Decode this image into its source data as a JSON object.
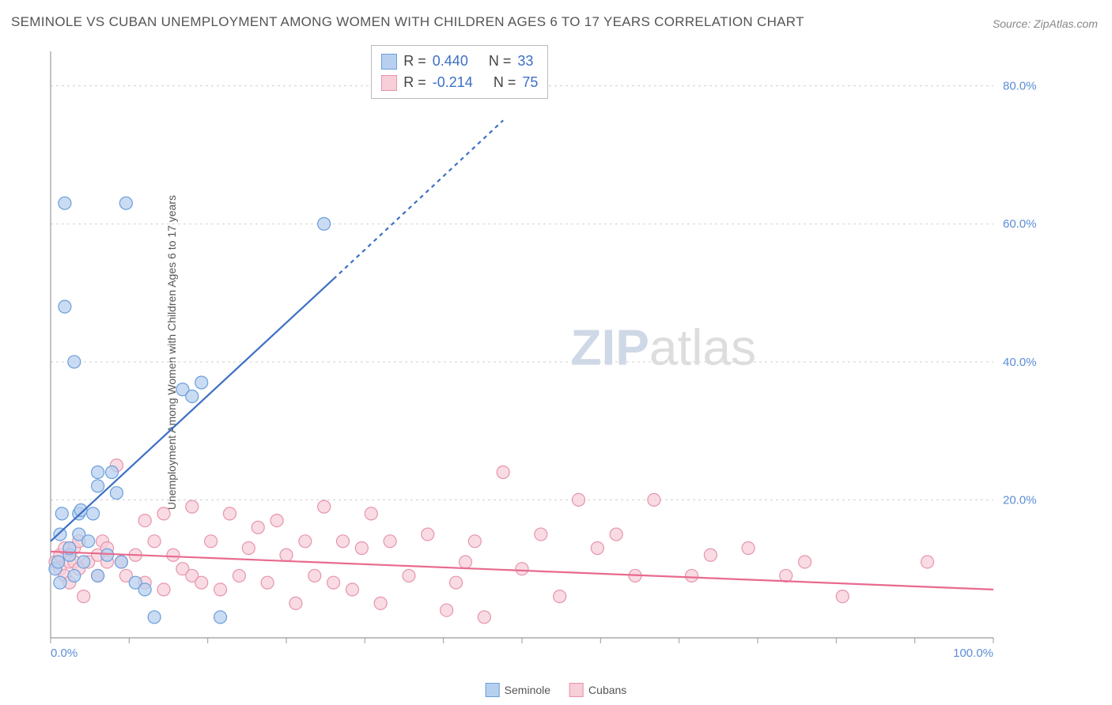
{
  "title": "SEMINOLE VS CUBAN UNEMPLOYMENT AMONG WOMEN WITH CHILDREN AGES 6 TO 17 YEARS CORRELATION CHART",
  "source_label": "Source: ",
  "source_name": "ZipAtlas.com",
  "y_axis_label": "Unemployment Among Women with Children Ages 6 to 17 years",
  "watermark": {
    "zip": "ZIP",
    "atlas": "atlas"
  },
  "legend": {
    "series_a_label": "Seminole",
    "series_b_label": "Cubans"
  },
  "stats": {
    "r_label": "R =",
    "n_label": "N =",
    "series_a": {
      "r": "0.440",
      "n": "33"
    },
    "series_b": {
      "r": "-0.214",
      "n": "75"
    }
  },
  "chart": {
    "type": "scatter",
    "xlim": [
      0,
      100
    ],
    "ylim": [
      0,
      85
    ],
    "x_tick_labels": {
      "min": "0.0%",
      "max": "100.0%"
    },
    "y_ticks": [
      20,
      40,
      60,
      80
    ],
    "y_tick_labels": [
      "20.0%",
      "40.0%",
      "60.0%",
      "80.0%"
    ],
    "x_tick_positions": [
      0,
      8.33,
      16.67,
      25,
      33.33,
      41.67,
      50,
      58.33,
      66.67,
      75,
      83.33,
      91.67,
      100
    ],
    "grid_color": "#d0d0d0",
    "axis_color": "#999999",
    "background_color": "#ffffff",
    "tick_label_color": "#5b8dd6",
    "marker_radius": 8,
    "marker_stroke_width": 1.2,
    "line_width": 2.2,
    "series_a": {
      "marker_fill": "#b8d0ef",
      "marker_stroke": "#6a9edb",
      "line_color": "#3d6fc4",
      "line_solid": {
        "x1": 0,
        "y1": 14,
        "x2": 30,
        "y2": 52
      },
      "line_dash": {
        "x1": 30,
        "y1": 52,
        "x2": 48,
        "y2": 75
      },
      "points": [
        [
          0.5,
          10
        ],
        [
          0.8,
          11
        ],
        [
          1,
          8
        ],
        [
          1,
          15
        ],
        [
          1.2,
          18
        ],
        [
          1.5,
          48
        ],
        [
          1.5,
          63
        ],
        [
          2,
          12
        ],
        [
          2,
          13
        ],
        [
          2.5,
          9
        ],
        [
          2.5,
          40
        ],
        [
          3,
          15
        ],
        [
          3,
          18
        ],
        [
          3.2,
          18.5
        ],
        [
          3.5,
          11
        ],
        [
          4,
          14
        ],
        [
          4.5,
          18
        ],
        [
          5,
          22
        ],
        [
          5,
          24
        ],
        [
          5,
          9
        ],
        [
          6,
          12
        ],
        [
          6.5,
          24
        ],
        [
          7,
          21
        ],
        [
          7.5,
          11
        ],
        [
          8,
          63
        ],
        [
          9,
          8
        ],
        [
          10,
          7
        ],
        [
          11,
          3
        ],
        [
          14,
          36
        ],
        [
          15,
          35
        ],
        [
          16,
          37
        ],
        [
          18,
          3
        ],
        [
          29,
          60
        ]
      ]
    },
    "series_b": {
      "marker_fill": "#f7cfd9",
      "marker_stroke": "#e794ab",
      "line_color": "#e86a8e",
      "line_solid": {
        "x1": 0,
        "y1": 12.5,
        "x2": 100,
        "y2": 7
      },
      "points": [
        [
          0.5,
          11
        ],
        [
          1,
          10
        ],
        [
          1,
          12
        ],
        [
          1.5,
          9
        ],
        [
          1.5,
          13
        ],
        [
          2,
          11
        ],
        [
          2,
          8
        ],
        [
          2.5,
          11
        ],
        [
          2.5,
          13
        ],
        [
          3,
          10
        ],
        [
          3,
          14
        ],
        [
          3.5,
          6
        ],
        [
          4,
          11
        ],
        [
          5,
          12
        ],
        [
          5,
          9
        ],
        [
          5.5,
          14
        ],
        [
          6,
          11
        ],
        [
          6,
          13
        ],
        [
          7,
          25
        ],
        [
          7.5,
          11
        ],
        [
          8,
          9
        ],
        [
          9,
          12
        ],
        [
          10,
          8
        ],
        [
          10,
          17
        ],
        [
          11,
          14
        ],
        [
          12,
          7
        ],
        [
          12,
          18
        ],
        [
          13,
          12
        ],
        [
          14,
          10
        ],
        [
          15,
          9
        ],
        [
          15,
          19
        ],
        [
          16,
          8
        ],
        [
          17,
          14
        ],
        [
          18,
          7
        ],
        [
          19,
          18
        ],
        [
          20,
          9
        ],
        [
          21,
          13
        ],
        [
          22,
          16
        ],
        [
          23,
          8
        ],
        [
          24,
          17
        ],
        [
          25,
          12
        ],
        [
          26,
          5
        ],
        [
          27,
          14
        ],
        [
          28,
          9
        ],
        [
          29,
          19
        ],
        [
          30,
          8
        ],
        [
          31,
          14
        ],
        [
          32,
          7
        ],
        [
          33,
          13
        ],
        [
          34,
          18
        ],
        [
          35,
          5
        ],
        [
          36,
          14
        ],
        [
          38,
          9
        ],
        [
          40,
          15
        ],
        [
          42,
          4
        ],
        [
          43,
          8
        ],
        [
          44,
          11
        ],
        [
          45,
          14
        ],
        [
          46,
          3
        ],
        [
          48,
          24
        ],
        [
          50,
          10
        ],
        [
          52,
          15
        ],
        [
          54,
          6
        ],
        [
          56,
          20
        ],
        [
          58,
          13
        ],
        [
          60,
          15
        ],
        [
          62,
          9
        ],
        [
          64,
          20
        ],
        [
          68,
          9
        ],
        [
          70,
          12
        ],
        [
          74,
          13
        ],
        [
          78,
          9
        ],
        [
          80,
          11
        ],
        [
          84,
          6
        ],
        [
          93,
          11
        ]
      ]
    }
  }
}
